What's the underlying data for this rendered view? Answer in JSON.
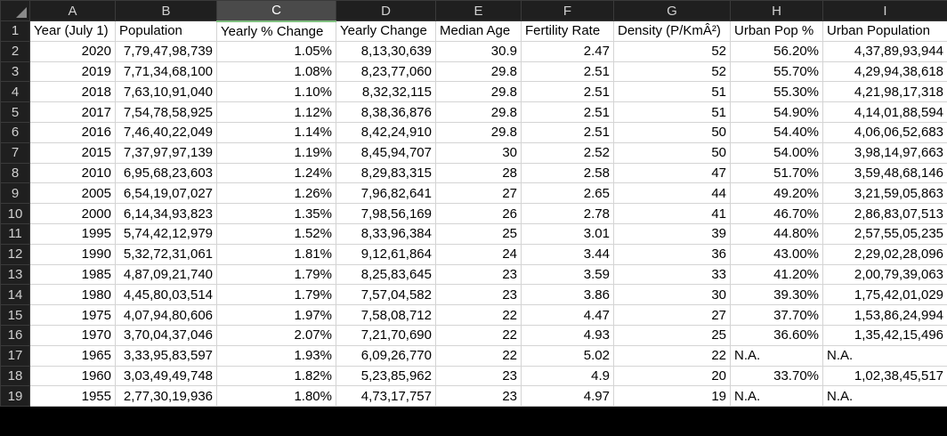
{
  "columns": [
    "A",
    "B",
    "C",
    "D",
    "E",
    "F",
    "G",
    "H",
    "I"
  ],
  "selected_column": "C",
  "headers": [
    "Year (July 1)",
    "Population",
    "Yearly %  Change",
    "Yearly Change",
    "Median Age",
    "Fertility Rate",
    "Density (P/KmÂ²)",
    "Urban Pop %",
    "Urban Population"
  ],
  "rows": [
    [
      "2020",
      "7,79,47,98,739",
      "1.05%",
      "8,13,30,639",
      "30.9",
      "2.47",
      "52",
      "56.20%",
      "4,37,89,93,944"
    ],
    [
      "2019",
      "7,71,34,68,100",
      "1.08%",
      "8,23,77,060",
      "29.8",
      "2.51",
      "52",
      "55.70%",
      "4,29,94,38,618"
    ],
    [
      "2018",
      "7,63,10,91,040",
      "1.10%",
      "8,32,32,115",
      "29.8",
      "2.51",
      "51",
      "55.30%",
      "4,21,98,17,318"
    ],
    [
      "2017",
      "7,54,78,58,925",
      "1.12%",
      "8,38,36,876",
      "29.8",
      "2.51",
      "51",
      "54.90%",
      "4,14,01,88,594"
    ],
    [
      "2016",
      "7,46,40,22,049",
      "1.14%",
      "8,42,24,910",
      "29.8",
      "2.51",
      "50",
      "54.40%",
      "4,06,06,52,683"
    ],
    [
      "2015",
      "7,37,97,97,139",
      "1.19%",
      "8,45,94,707",
      "30",
      "2.52",
      "50",
      "54.00%",
      "3,98,14,97,663"
    ],
    [
      "2010",
      "6,95,68,23,603",
      "1.24%",
      "8,29,83,315",
      "28",
      "2.58",
      "47",
      "51.70%",
      "3,59,48,68,146"
    ],
    [
      "2005",
      "6,54,19,07,027",
      "1.26%",
      "7,96,82,641",
      "27",
      "2.65",
      "44",
      "49.20%",
      "3,21,59,05,863"
    ],
    [
      "2000",
      "6,14,34,93,823",
      "1.35%",
      "7,98,56,169",
      "26",
      "2.78",
      "41",
      "46.70%",
      "2,86,83,07,513"
    ],
    [
      "1995",
      "5,74,42,12,979",
      "1.52%",
      "8,33,96,384",
      "25",
      "3.01",
      "39",
      "44.80%",
      "2,57,55,05,235"
    ],
    [
      "1990",
      "5,32,72,31,061",
      "1.81%",
      "9,12,61,864",
      "24",
      "3.44",
      "36",
      "43.00%",
      "2,29,02,28,096"
    ],
    [
      "1985",
      "4,87,09,21,740",
      "1.79%",
      "8,25,83,645",
      "23",
      "3.59",
      "33",
      "41.20%",
      "2,00,79,39,063"
    ],
    [
      "1980",
      "4,45,80,03,514",
      "1.79%",
      "7,57,04,582",
      "23",
      "3.86",
      "30",
      "39.30%",
      "1,75,42,01,029"
    ],
    [
      "1975",
      "4,07,94,80,606",
      "1.97%",
      "7,58,08,712",
      "22",
      "4.47",
      "27",
      "37.70%",
      "1,53,86,24,994"
    ],
    [
      "1970",
      "3,70,04,37,046",
      "2.07%",
      "7,21,70,690",
      "22",
      "4.93",
      "25",
      "36.60%",
      "1,35,42,15,496"
    ],
    [
      "1965",
      "3,33,95,83,597",
      "1.93%",
      "6,09,26,770",
      "22",
      "5.02",
      "22",
      "N.A.",
      "N.A."
    ],
    [
      "1960",
      "3,03,49,49,748",
      "1.82%",
      "5,23,85,962",
      "23",
      "4.9",
      "20",
      "33.70%",
      "1,02,38,45,517"
    ],
    [
      "1955",
      "2,77,30,19,936",
      "1.80%",
      "4,73,17,757",
      "23",
      "4.97",
      "19",
      "N.A.",
      "N.A."
    ]
  ]
}
